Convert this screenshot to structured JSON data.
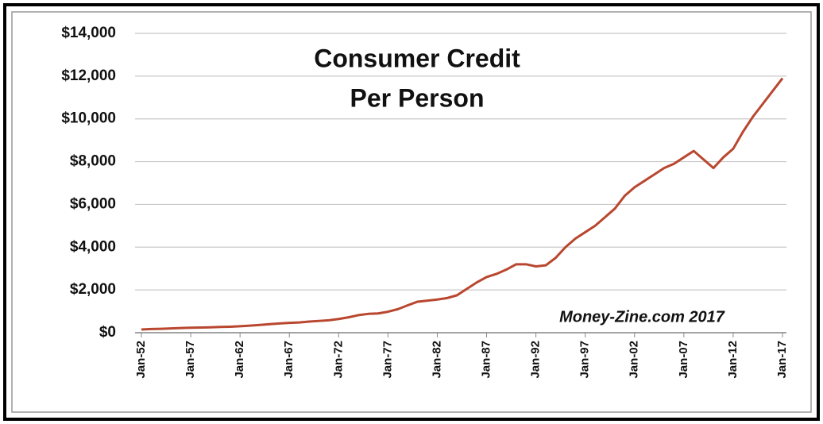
{
  "chart_data": {
    "type": "line",
    "title_lines": [
      "Consumer Credit",
      "Per Person"
    ],
    "annotation": "Money-Zine.com 2017",
    "x": [
      1952,
      1953,
      1954,
      1955,
      1956,
      1957,
      1958,
      1959,
      1960,
      1961,
      1962,
      1963,
      1964,
      1965,
      1966,
      1967,
      1968,
      1969,
      1970,
      1971,
      1972,
      1973,
      1974,
      1975,
      1976,
      1977,
      1978,
      1979,
      1980,
      1981,
      1982,
      1983,
      1984,
      1985,
      1986,
      1987,
      1988,
      1989,
      1990,
      1991,
      1992,
      1993,
      1994,
      1995,
      1996,
      1997,
      1998,
      1999,
      2000,
      2001,
      2002,
      2003,
      2004,
      2005,
      2006,
      2007,
      2008,
      2009,
      2010,
      2011,
      2012,
      2013,
      2014,
      2015,
      2016,
      2017
    ],
    "series": [
      {
        "name": "Consumer Credit Per Person",
        "color": "#b9472f",
        "values": [
          150,
          170,
          180,
          200,
          220,
          230,
          240,
          250,
          270,
          280,
          300,
          330,
          360,
          400,
          430,
          460,
          480,
          520,
          550,
          580,
          640,
          720,
          820,
          880,
          900,
          980,
          1100,
          1280,
          1450,
          1500,
          1550,
          1620,
          1750,
          2050,
          2350,
          2600,
          2750,
          2950,
          3200,
          3200,
          3100,
          3150,
          3500,
          4000,
          4400,
          4700,
          5000,
          5400,
          5800,
          6400,
          6800,
          7100,
          7400,
          7700,
          7900,
          8200,
          8500,
          8100,
          7700,
          8200,
          8600,
          9400,
          10100,
          10700,
          11300,
          11900
        ]
      }
    ],
    "xlim": [
      1952,
      2017
    ],
    "xticks": [
      {
        "value": 1952,
        "label": "Jan-52"
      },
      {
        "value": 1957,
        "label": "Jan-57"
      },
      {
        "value": 1962,
        "label": "Jan-62"
      },
      {
        "value": 1967,
        "label": "Jan-67"
      },
      {
        "value": 1972,
        "label": "Jan-72"
      },
      {
        "value": 1977,
        "label": "Jan-77"
      },
      {
        "value": 1982,
        "label": "Jan-82"
      },
      {
        "value": 1987,
        "label": "Jan-87"
      },
      {
        "value": 1992,
        "label": "Jan-92"
      },
      {
        "value": 1997,
        "label": "Jan-97"
      },
      {
        "value": 2002,
        "label": "Jan-02"
      },
      {
        "value": 2007,
        "label": "Jan-07"
      },
      {
        "value": 2012,
        "label": "Jan-12"
      },
      {
        "value": 2017,
        "label": "Jan-17"
      }
    ],
    "ylim": [
      0,
      14000
    ],
    "yticks": [
      {
        "value": 0,
        "label": "$0"
      },
      {
        "value": 2000,
        "label": "$2,000"
      },
      {
        "value": 4000,
        "label": "$4,000"
      },
      {
        "value": 6000,
        "label": "$6,000"
      },
      {
        "value": 8000,
        "label": "$8,000"
      },
      {
        "value": 10000,
        "label": "$10,000"
      },
      {
        "value": 12000,
        "label": "$12,000"
      },
      {
        "value": 14000,
        "label": "$14,000"
      }
    ],
    "grid": true
  }
}
